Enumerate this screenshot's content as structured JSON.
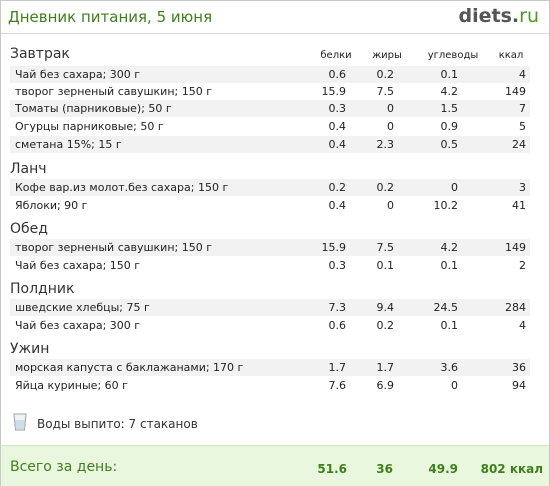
{
  "header": {
    "title": "Дневник питания, 5 июня",
    "logo_main": "diets",
    "logo_dot": ".",
    "logo_tld": "ru"
  },
  "columns": {
    "protein": "белки",
    "fat": "жиры",
    "carbs": "углеводы",
    "kcal": "ккал"
  },
  "meals": [
    {
      "name": "Завтрак",
      "items": [
        {
          "name": "Чай без сахара; 300 г",
          "protein": "0.6",
          "fat": "0.2",
          "carbs": "0.1",
          "kcal": "4"
        },
        {
          "name": "творог зерненый савушкин; 150 г",
          "protein": "15.9",
          "fat": "7.5",
          "carbs": "4.2",
          "kcal": "149"
        },
        {
          "name": "Томаты (парниковые); 50 г",
          "protein": "0.3",
          "fat": "0",
          "carbs": "1.5",
          "kcal": "7"
        },
        {
          "name": "Огурцы парниковые; 50 г",
          "protein": "0.4",
          "fat": "0",
          "carbs": "0.9",
          "kcal": "5"
        },
        {
          "name": "сметана 15%; 15 г",
          "protein": "0.4",
          "fat": "2.3",
          "carbs": "0.5",
          "kcal": "24"
        }
      ]
    },
    {
      "name": "Ланч",
      "items": [
        {
          "name": "Кофе вар.из молот.без сахара; 150 г",
          "protein": "0.2",
          "fat": "0.2",
          "carbs": "0",
          "kcal": "3"
        },
        {
          "name": "Яблоки; 90 г",
          "protein": "0.4",
          "fat": "0",
          "carbs": "10.2",
          "kcal": "41"
        }
      ]
    },
    {
      "name": "Обед",
      "items": [
        {
          "name": "творог зерненый савушкин; 150 г",
          "protein": "15.9",
          "fat": "7.5",
          "carbs": "4.2",
          "kcal": "149"
        },
        {
          "name": "Чай без сахара; 150 г",
          "protein": "0.3",
          "fat": "0.1",
          "carbs": "0.1",
          "kcal": "2"
        }
      ]
    },
    {
      "name": "Полдник",
      "items": [
        {
          "name": "шведские хлебцы; 75 г",
          "protein": "7.3",
          "fat": "9.4",
          "carbs": "24.5",
          "kcal": "284"
        },
        {
          "name": "Чай без сахара; 300 г",
          "protein": "0.6",
          "fat": "0.2",
          "carbs": "0.1",
          "kcal": "4"
        }
      ]
    },
    {
      "name": "Ужин",
      "items": [
        {
          "name": "морская капуста с баклажанами; 170 г",
          "protein": "1.7",
          "fat": "1.7",
          "carbs": "3.6",
          "kcal": "36"
        },
        {
          "name": "Яйца куриные; 60 г",
          "protein": "7.6",
          "fat": "6.9",
          "carbs": "0",
          "kcal": "94"
        }
      ]
    }
  ],
  "water": {
    "icon": "glass-icon",
    "text": "Воды выпито: 7 стаканов"
  },
  "total": {
    "label": "Всего за день:",
    "protein": "51.6",
    "fat": "36",
    "carbs": "49.9",
    "kcal": "802 ккал"
  },
  "colors": {
    "accent_green": "#3f7f1d",
    "total_bg": "#eaf7df",
    "row_alt": "#f2f2f2"
  }
}
